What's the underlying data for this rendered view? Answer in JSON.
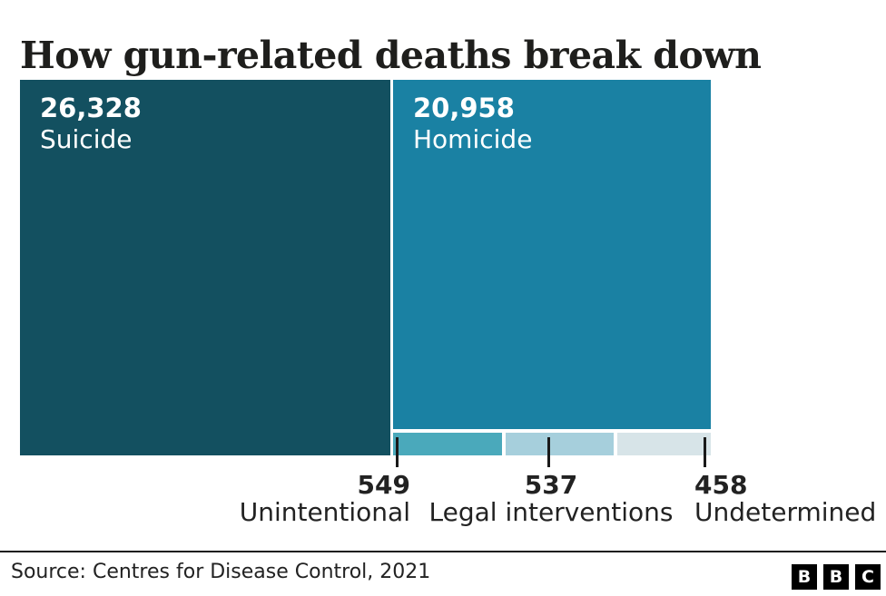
{
  "title": "How gun-related deaths break down",
  "chart_data": {
    "type": "treemap",
    "title": "How gun-related deaths break down",
    "categories": [
      "Suicide",
      "Homicide",
      "Unintentional",
      "Legal interventions",
      "Undetermined"
    ],
    "values": [
      26328,
      20958,
      549,
      537,
      458
    ],
    "value_labels": [
      "26,328",
      "20,958",
      "549",
      "537",
      "458"
    ],
    "colors": [
      "#135060",
      "#1a81a3",
      "#4aa9bb",
      "#a6cfdc",
      "#d7e4e8"
    ],
    "legend_position": "none",
    "grid": false,
    "source": "Source: Centres for Disease Control, 2021"
  },
  "blocks": [
    {
      "value": "26,328",
      "label": "Suicide",
      "color": "#135060"
    },
    {
      "value": "20,958",
      "label": "Homicide",
      "color": "#1a81a3"
    }
  ],
  "annotations": [
    {
      "value": "549",
      "label": "Unintentional",
      "color": "#4aa9bb"
    },
    {
      "value": "537",
      "label": "Legal interventions",
      "color": "#a6cfdc"
    },
    {
      "value": "458",
      "label": "Undetermined",
      "color": "#d7e4e8"
    }
  ],
  "footer": {
    "source": "Source: Centres for Disease Control, 2021",
    "logo": {
      "letters": [
        "B",
        "B",
        "C"
      ],
      "bg_color": "#000000",
      "fg_color": "#ffffff"
    }
  },
  "colors": {
    "background": "#ffffff",
    "text_dark": "#1e1e1c",
    "text_annotation": "#222222",
    "tick": "#1a1a1a",
    "rule": "#1a1a1a"
  }
}
